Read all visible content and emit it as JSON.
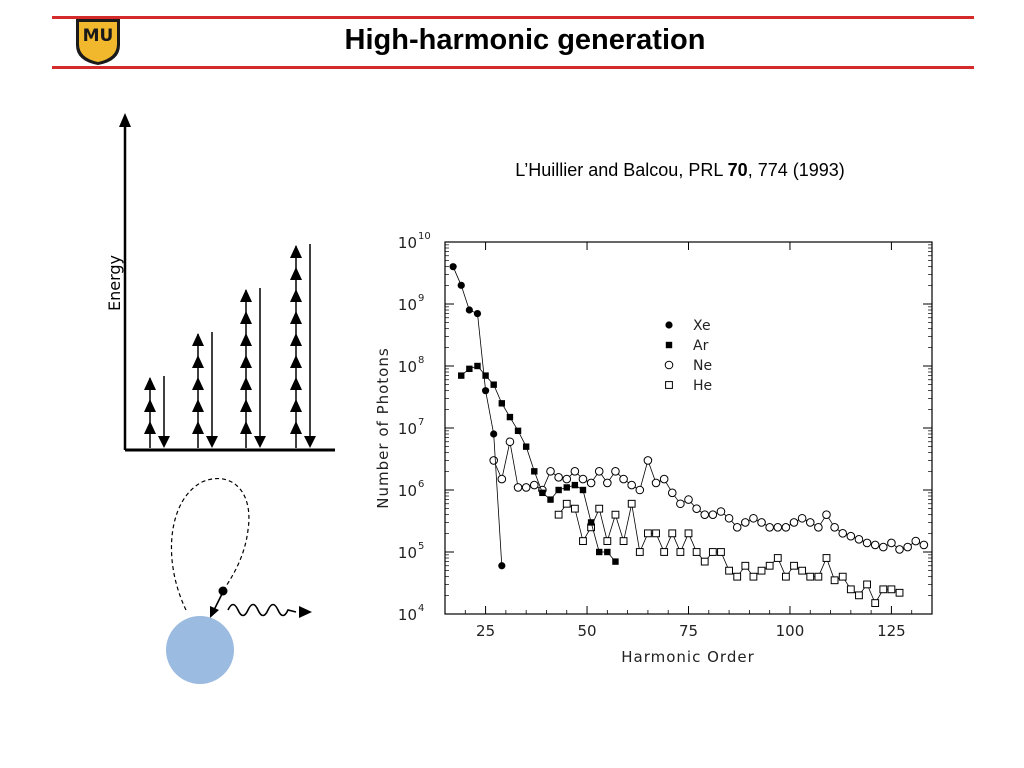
{
  "slide": {
    "title": "High-harmonic generation",
    "logo_letters": "MU",
    "colors": {
      "accent_red": "#d42a2a",
      "logo_gold": "#f1b82d",
      "atom_blue": "#9bbbe0"
    }
  },
  "citation": {
    "authors": "L’Huillier and Balcou, PRL ",
    "volume": "70",
    "rest": ", 774 (1993)"
  },
  "energy_diagram": {
    "ylabel": "Energy",
    "photon_groups": [
      {
        "up_photons": 3
      },
      {
        "up_photons": 5
      },
      {
        "up_photons": 7
      },
      {
        "up_photons": 9
      }
    ]
  },
  "recollision_sketch": {
    "icons": [
      "electron-trajectory-loop",
      "emitted-photon-wave",
      "atom-circle"
    ]
  },
  "chart_data": {
    "type": "scatter",
    "xlabel": "Harmonic Order",
    "ylabel": "Number of Photons",
    "xlim": [
      15,
      135
    ],
    "ylim_log10": [
      4,
      10
    ],
    "yscale": "log",
    "x_ticks": [
      25,
      50,
      75,
      100,
      125
    ],
    "y_ticks": [
      {
        "value": 4,
        "label": "10",
        "exp": "4"
      },
      {
        "value": 5,
        "label": "10",
        "exp": "5"
      },
      {
        "value": 6,
        "label": "10",
        "exp": "6"
      },
      {
        "value": 7,
        "label": "10",
        "exp": "7"
      },
      {
        "value": 8,
        "label": "10",
        "exp": "8"
      },
      {
        "value": 9,
        "label": "10",
        "exp": "9"
      },
      {
        "value": 10,
        "label": "10",
        "exp": "10"
      }
    ],
    "legend_position": "top-center",
    "series": [
      {
        "name": "Xe",
        "marker": "filled-circle",
        "x": [
          17,
          19,
          21,
          23,
          25,
          27,
          29
        ],
        "y": [
          4000000000,
          2000000000,
          800000000,
          700000000,
          40000000,
          8000000,
          60000
        ]
      },
      {
        "name": "Ar",
        "marker": "filled-square",
        "x": [
          19,
          21,
          23,
          25,
          27,
          29,
          31,
          33,
          35,
          37,
          39,
          41,
          43,
          45,
          47,
          49,
          51,
          53,
          55,
          57
        ],
        "y": [
          70000000,
          90000000,
          100000000,
          70000000,
          50000000,
          25000000,
          15000000,
          9000000,
          5000000,
          2000000,
          900000,
          700000,
          1000000,
          1100000,
          1200000,
          1000000,
          300000,
          100000,
          100000,
          70000
        ]
      },
      {
        "name": "Ne",
        "marker": "open-circle",
        "x": [
          27,
          29,
          31,
          33,
          35,
          37,
          39,
          41,
          43,
          45,
          47,
          49,
          51,
          53,
          55,
          57,
          59,
          61,
          63,
          65,
          67,
          69,
          71,
          73,
          75,
          77,
          79,
          81,
          83,
          85,
          87,
          89,
          91,
          93,
          95,
          97,
          99,
          101,
          103,
          105,
          107,
          109,
          111,
          113,
          115,
          117,
          119,
          121,
          123,
          125,
          127,
          129,
          131,
          133
        ],
        "y": [
          3000000,
          1500000,
          6000000,
          1100000,
          1100000,
          1200000,
          1000000,
          2000000,
          1600000,
          1500000,
          2000000,
          1500000,
          1300000,
          2000000,
          1300000,
          2000000,
          1500000,
          1200000,
          1000000,
          3000000,
          1300000,
          1500000,
          900000,
          600000,
          700000,
          500000,
          400000,
          400000,
          450000,
          350000,
          250000,
          300000,
          350000,
          300000,
          250000,
          250000,
          250000,
          300000,
          350000,
          300000,
          250000,
          400000,
          250000,
          200000,
          180000,
          160000,
          140000,
          130000,
          120000,
          140000,
          110000,
          120000,
          150000,
          130000
        ]
      },
      {
        "name": "He",
        "marker": "open-square",
        "x": [
          43,
          45,
          47,
          49,
          51,
          53,
          55,
          57,
          59,
          61,
          63,
          65,
          67,
          69,
          71,
          73,
          75,
          77,
          79,
          81,
          83,
          85,
          87,
          89,
          91,
          93,
          95,
          97,
          99,
          101,
          103,
          105,
          107,
          109,
          111,
          113,
          115,
          117,
          119,
          121,
          123,
          125,
          127
        ],
        "y": [
          400000,
          600000,
          500000,
          150000,
          250000,
          500000,
          150000,
          400000,
          150000,
          600000,
          100000,
          200000,
          200000,
          100000,
          200000,
          100000,
          200000,
          100000,
          70000,
          100000,
          100000,
          50000,
          40000,
          60000,
          40000,
          50000,
          60000,
          80000,
          40000,
          60000,
          50000,
          40000,
          40000,
          80000,
          35000,
          40000,
          25000,
          20000,
          30000,
          15000,
          25000,
          25000,
          22000
        ]
      }
    ]
  }
}
